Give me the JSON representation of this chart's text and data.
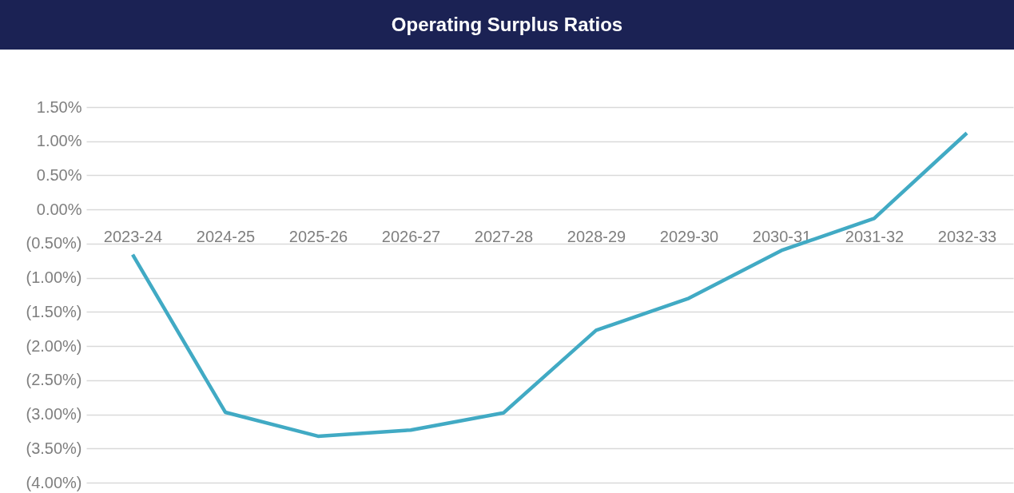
{
  "chart_data": {
    "type": "line",
    "title": "Operating Surplus Ratios",
    "categories": [
      "2023-24",
      "2024-25",
      "2025-26",
      "2026-27",
      "2027-28",
      "2028-29",
      "2029-30",
      "2030-31",
      "2031-32",
      "2032-33"
    ],
    "series": [
      {
        "color": "#41aac4",
        "values": [
          -0.66,
          -2.97,
          -3.32,
          -3.23,
          -2.98,
          -1.77,
          -1.3,
          -0.6,
          -0.13,
          1.12
        ]
      }
    ],
    "ylim": [
      -4,
      1.5
    ],
    "yticks": [
      {
        "value": -4,
        "label": "(4.00%)"
      },
      {
        "value": -3.5,
        "label": "(3.50%)"
      },
      {
        "value": -3,
        "label": "(3.00%)"
      },
      {
        "value": -2.5,
        "label": "(2.50%)"
      },
      {
        "value": -2,
        "label": "(2.00%)"
      },
      {
        "value": -1.5,
        "label": "(1.50%)"
      },
      {
        "value": -1,
        "label": "(1.00%)"
      },
      {
        "value": -0.5,
        "label": "(0.50%)"
      },
      {
        "value": 0,
        "label": "0.00%"
      },
      {
        "value": 0.5,
        "label": "0.50%"
      },
      {
        "value": 1,
        "label": "1.00%"
      },
      {
        "value": 1.5,
        "label": "1.50%"
      }
    ],
    "grid": "y",
    "marker": "none",
    "line_style": "solid"
  }
}
